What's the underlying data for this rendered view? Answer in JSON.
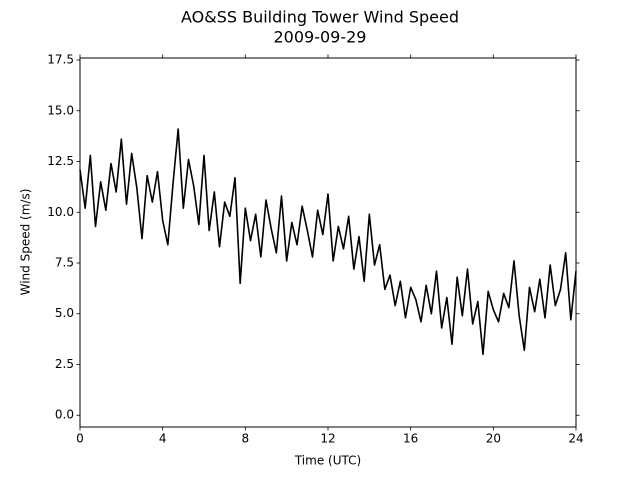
{
  "chart_data": {
    "type": "line",
    "title": "AO&SS Building Tower Wind Speed",
    "subtitle": "2009-09-29",
    "x_label": "Time (UTC)",
    "y_label": "Wind Speed (m/s)",
    "xlim": [
      0,
      24
    ],
    "xticks": [
      0,
      4,
      8,
      12,
      16,
      20,
      24
    ],
    "ylim": [
      -0.58,
      17.6
    ],
    "yticks": [
      {
        "value": 0,
        "label": "0.0"
      },
      2.5,
      {
        "value": 5,
        "label": "5.0"
      },
      7.5,
      {
        "value": 10,
        "label": "10.0"
      },
      12.5,
      {
        "value": 15,
        "label": "15.0"
      },
      17.5
    ],
    "color": "#000000",
    "x": [
      0,
      0.25,
      0.5,
      0.75,
      1,
      1.25,
      1.5,
      1.75,
      2,
      2.25,
      2.5,
      2.75,
      3,
      3.25,
      3.5,
      3.75,
      4,
      4.25,
      4.5,
      4.75,
      5,
      5.25,
      5.5,
      5.75,
      6,
      6.25,
      6.5,
      6.75,
      7,
      7.25,
      7.5,
      7.75,
      8,
      8.25,
      8.5,
      8.75,
      9,
      9.25,
      9.5,
      9.75,
      10,
      10.25,
      10.5,
      10.75,
      11,
      11.25,
      11.5,
      11.75,
      12,
      12.25,
      12.5,
      12.75,
      13,
      13.25,
      13.5,
      13.75,
      14,
      14.25,
      14.5,
      14.75,
      15,
      15.25,
      15.5,
      15.75,
      16,
      16.25,
      16.5,
      16.75,
      17,
      17.25,
      17.5,
      17.75,
      18,
      18.25,
      18.5,
      18.75,
      19,
      19.25,
      19.5,
      19.75,
      20,
      20.25,
      20.5,
      20.75,
      21,
      21.25,
      21.5,
      21.75,
      22,
      22.25,
      22.5,
      22.75,
      23,
      23.25,
      23.5,
      23.75,
      24
    ],
    "values": [
      12.1,
      10.2,
      12.8,
      9.3,
      11.5,
      10.1,
      12.4,
      11.0,
      13.6,
      10.4,
      12.9,
      11.2,
      8.7,
      11.8,
      10.5,
      12.0,
      9.6,
      8.4,
      11.4,
      14.1,
      10.2,
      12.6,
      11.3,
      9.4,
      12.8,
      9.1,
      11.0,
      8.3,
      10.5,
      9.8,
      11.7,
      6.5,
      10.2,
      8.6,
      9.9,
      7.8,
      10.6,
      9.2,
      8.0,
      10.8,
      7.6,
      9.5,
      8.4,
      10.3,
      9.1,
      7.8,
      10.1,
      8.9,
      10.9,
      7.6,
      9.3,
      8.2,
      9.8,
      7.2,
      8.8,
      6.6,
      9.9,
      7.4,
      8.4,
      6.2,
      6.9,
      5.4,
      6.6,
      4.8,
      6.3,
      5.7,
      4.6,
      6.4,
      5.0,
      7.1,
      4.3,
      5.8,
      3.5,
      6.8,
      4.9,
      7.2,
      4.5,
      5.6,
      3.0,
      6.1,
      5.2,
      4.6,
      6.0,
      5.3,
      7.6,
      4.9,
      3.2,
      6.3,
      5.1,
      6.7,
      4.8,
      7.4,
      5.4,
      6.2,
      8.0,
      4.7,
      7.1
    ]
  }
}
